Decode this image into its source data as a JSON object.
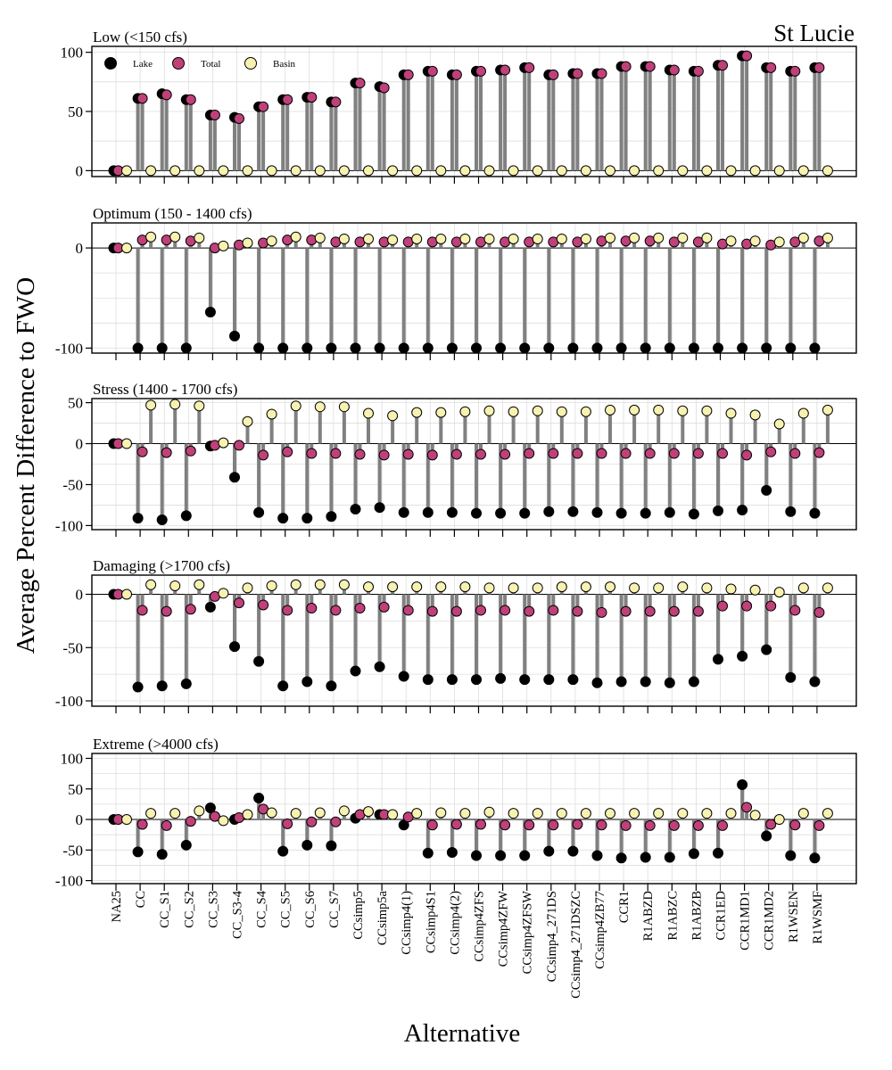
{
  "chart_data": {
    "type": "scatter",
    "title": "St Lucie",
    "xlabel": "Alternative",
    "ylabel": "Average Percent Difference to FWO",
    "legend": {
      "position": "top-left",
      "entries": [
        "Lake",
        "Total",
        "Basin"
      ]
    },
    "colors": {
      "Lake": "#000000",
      "Total": "#c0407a",
      "Basin": "#f8f2b0",
      "stem": "#808080"
    },
    "grid": true,
    "categories": [
      "NA25",
      "CC",
      "CC_S1",
      "CC_S2",
      "CC_S3",
      "CC_S3-4",
      "CC_S4",
      "CC_S5",
      "CC_S6",
      "CC_S7",
      "CCsimp5",
      "CCsimp5a",
      "CCsimp4(1)",
      "CCsimp4S1",
      "CCsimp4(2)",
      "CCsimp4ZFS",
      "CCsimp4ZFW",
      "CCsimp4ZFSW",
      "CCsimp4_271DS",
      "CCsimp4_271DSZC",
      "CCsimp4ZB77",
      "CCR1",
      "R1ABZD",
      "R1ABZC",
      "R1ABZB",
      "CCR1ED",
      "CCR1MD1",
      "CCR1MD2",
      "R1WSEN",
      "R1WSMF"
    ],
    "panels": [
      {
        "label": "Low (<150 cfs)",
        "ylim": [
          -5,
          105
        ],
        "yticks": [
          0,
          50,
          100
        ],
        "series": [
          {
            "name": "Lake",
            "values": [
              0,
              61,
              65,
              60,
              47,
              45,
              54,
              60,
              62,
              58,
              74,
              71,
              81,
              84,
              81,
              84,
              85,
              87,
              81,
              82,
              82,
              88,
              88,
              85,
              84,
              89,
              97,
              87,
              84,
              87
            ]
          },
          {
            "name": "Total",
            "values": [
              0,
              61,
              64,
              60,
              47,
              44,
              54,
              60,
              62,
              58,
              74,
              70,
              81,
              84,
              81,
              84,
              85,
              87,
              81,
              82,
              82,
              88,
              88,
              85,
              84,
              89,
              97,
              87,
              84,
              87
            ]
          },
          {
            "name": "Basin",
            "values": [
              0,
              0,
              0,
              0,
              0,
              0,
              0,
              0,
              0,
              0,
              0,
              0,
              0,
              0,
              0,
              0,
              0,
              0,
              0,
              0,
              0,
              0,
              0,
              0,
              0,
              0,
              0,
              0,
              0,
              0
            ]
          }
        ]
      },
      {
        "label": "Optimum (150 - 1400 cfs)",
        "ylim": [
          -105,
          25
        ],
        "yticks": [
          0,
          -100
        ],
        "series": [
          {
            "name": "Lake",
            "values": [
              0,
              -100,
              -100,
              -100,
              -64,
              -88,
              -100,
              -100,
              -100,
              -100,
              -100,
              -100,
              -100,
              -100,
              -100,
              -100,
              -100,
              -100,
              -100,
              -100,
              -100,
              -100,
              -100,
              -100,
              -100,
              -100,
              -100,
              -100,
              -100,
              -100
            ]
          },
          {
            "name": "Total",
            "values": [
              0,
              8,
              8,
              7,
              0,
              3,
              5,
              8,
              8,
              6,
              6,
              6,
              6,
              6,
              6,
              6,
              6,
              6,
              6,
              6,
              7,
              7,
              7,
              6,
              6,
              4,
              4,
              3,
              6,
              7
            ]
          },
          {
            "name": "Basin",
            "values": [
              0,
              11,
              11,
              10,
              2,
              5,
              7,
              11,
              10,
              9,
              9,
              8,
              9,
              9,
              9,
              9,
              9,
              9,
              9,
              9,
              10,
              10,
              10,
              10,
              10,
              7,
              7,
              6,
              10,
              10
            ]
          }
        ]
      },
      {
        "label": "Stress (1400 - 1700 cfs)",
        "ylim": [
          -105,
          55
        ],
        "yticks": [
          50,
          0,
          -50,
          -100
        ],
        "series": [
          {
            "name": "Lake",
            "values": [
              0,
              -91,
              -93,
              -88,
              -3,
              -41,
              -84,
              -91,
              -91,
              -89,
              -80,
              -78,
              -84,
              -84,
              -84,
              -85,
              -85,
              -85,
              -83,
              -83,
              -84,
              -85,
              -85,
              -84,
              -86,
              -82,
              -81,
              -57,
              -83,
              -85
            ]
          },
          {
            "name": "Total",
            "values": [
              0,
              -10,
              -11,
              -9,
              -2,
              -2,
              -14,
              -10,
              -12,
              -12,
              -13,
              -14,
              -13,
              -14,
              -13,
              -13,
              -13,
              -12,
              -12,
              -12,
              -12,
              -12,
              -12,
              -12,
              -12,
              -12,
              -14,
              -10,
              -12,
              -11
            ]
          },
          {
            "name": "Basin",
            "values": [
              0,
              47,
              48,
              46,
              1,
              27,
              36,
              46,
              45,
              45,
              37,
              34,
              38,
              38,
              39,
              40,
              39,
              40,
              39,
              39,
              41,
              41,
              41,
              40,
              40,
              37,
              35,
              24,
              37,
              41
            ]
          }
        ]
      },
      {
        "label": "Damaging (>1700 cfs)",
        "ylim": [
          -105,
          18
        ],
        "yticks": [
          0,
          -50,
          -100
        ],
        "series": [
          {
            "name": "Lake",
            "values": [
              0,
              -87,
              -86,
              -84,
              -12,
              -49,
              -63,
              -86,
              -82,
              -86,
              -72,
              -68,
              -77,
              -80,
              -80,
              -80,
              -79,
              -80,
              -80,
              -80,
              -83,
              -82,
              -82,
              -83,
              -82,
              -61,
              -58,
              -52,
              -78,
              -82
            ]
          },
          {
            "name": "Total",
            "values": [
              0,
              -15,
              -16,
              -14,
              -2,
              -8,
              -10,
              -15,
              -13,
              -15,
              -13,
              -12,
              -15,
              -16,
              -16,
              -15,
              -15,
              -16,
              -15,
              -16,
              -17,
              -16,
              -16,
              -16,
              -16,
              -11,
              -11,
              -11,
              -15,
              -17
            ]
          },
          {
            "name": "Basin",
            "values": [
              0,
              9,
              8,
              9,
              1,
              6,
              8,
              9,
              9,
              9,
              7,
              7,
              7,
              7,
              7,
              6,
              6,
              6,
              7,
              7,
              7,
              6,
              6,
              7,
              6,
              5,
              4,
              2,
              6,
              6
            ]
          }
        ]
      },
      {
        "label": "Extreme (>4000 cfs)",
        "ylim": [
          -105,
          108
        ],
        "yticks": [
          100,
          50,
          0,
          -50,
          -100
        ],
        "series": [
          {
            "name": "Lake",
            "values": [
              0,
              -53,
              -57,
              -42,
              19,
              0,
              35,
              -52,
              -42,
              -43,
              2,
              8,
              -9,
              -55,
              -54,
              -59,
              -59,
              -59,
              -52,
              -52,
              -59,
              -63,
              -62,
              -62,
              -56,
              -55,
              57,
              -27,
              -59,
              -63
            ]
          },
          {
            "name": "Total",
            "values": [
              0,
              -8,
              -10,
              -3,
              5,
              3,
              17,
              -7,
              -4,
              -4,
              8,
              8,
              4,
              -9,
              -8,
              -8,
              -9,
              -9,
              -9,
              -8,
              -9,
              -10,
              -10,
              -10,
              -10,
              -10,
              20,
              -8,
              -9,
              -10
            ]
          },
          {
            "name": "Basin",
            "values": [
              0,
              10,
              10,
              14,
              -2,
              8,
              11,
              10,
              11,
              14,
              13,
              8,
              10,
              11,
              10,
              12,
              10,
              10,
              10,
              10,
              10,
              10,
              10,
              10,
              10,
              10,
              7,
              0,
              10,
              10
            ]
          }
        ]
      }
    ]
  }
}
